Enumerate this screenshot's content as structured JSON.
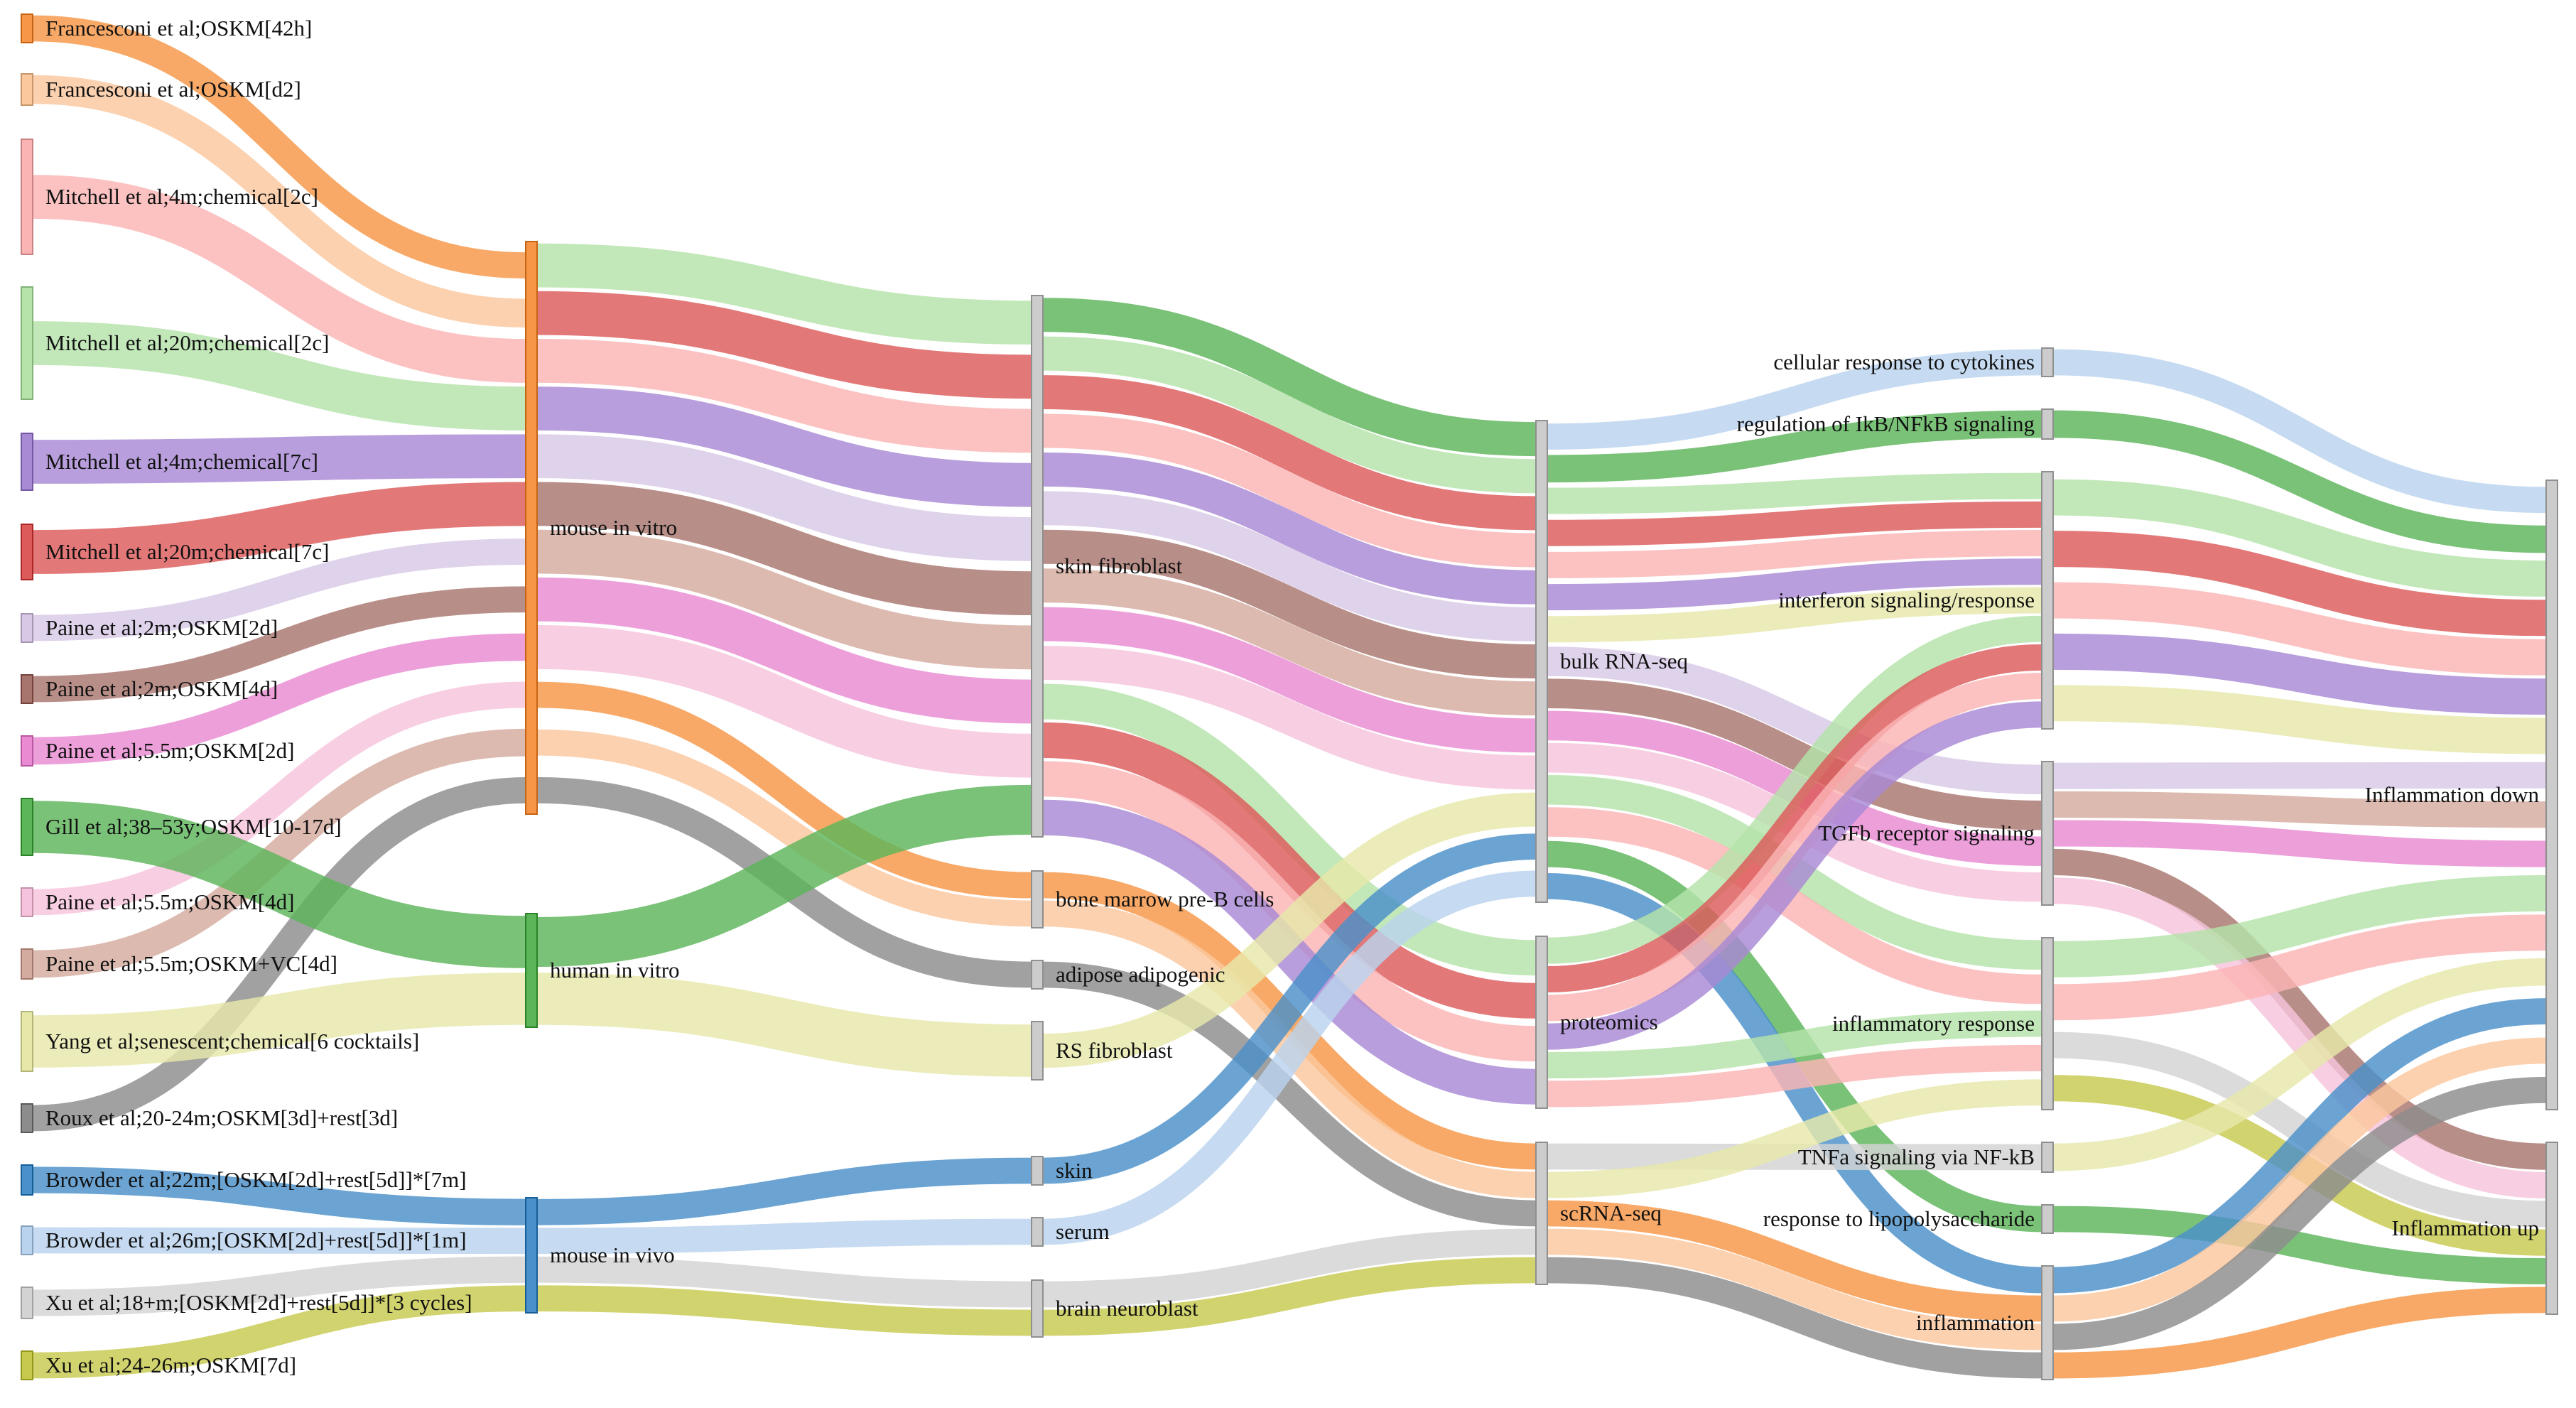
{
  "diagram": {
    "type": "sankey",
    "columns": [
      {
        "id": "studies",
        "nodes": [
          {
            "id": "s1",
            "label": "Francesconi et al;OSKM[42h]",
            "color": "#f79646"
          },
          {
            "id": "s2",
            "label": "Francesconi et al;OSKM[d2]",
            "color": "#fbc79d"
          },
          {
            "id": "s3",
            "label": "Mitchell et al;4m;chemical[2c]",
            "color": "#fbb4b4"
          },
          {
            "id": "s4",
            "label": "Mitchell et al;20m;chemical[2c]",
            "color": "#b5e3a9"
          },
          {
            "id": "s5",
            "label": "Mitchell et al;4m;chemical[7c]",
            "color": "#a889d4"
          },
          {
            "id": "s6",
            "label": "Mitchell et al;20m;chemical[7c]",
            "color": "#dd5a5a"
          },
          {
            "id": "s7",
            "label": "Paine et al;2m;OSKM[2d]",
            "color": "#d8c8e6"
          },
          {
            "id": "s8",
            "label": "Paine et al;2m;OSKM[4d]",
            "color": "#a8756e"
          },
          {
            "id": "s9",
            "label": "Paine et al;5.5m;OSKM[2d]",
            "color": "#e98ad2"
          },
          {
            "id": "s10",
            "label": "Gill et al;38–53y;OSKM[10-17d]",
            "color": "#5db55a"
          },
          {
            "id": "s11",
            "label": "Paine et al;5.5m;OSKM[4d]",
            "color": "#f6c3dd"
          },
          {
            "id": "s12",
            "label": "Paine et al;5.5m;OSKM+VC[4d]",
            "color": "#d4ab9f"
          },
          {
            "id": "s13",
            "label": "Yang et al;senescent;chemical[6 cocktails]",
            "color": "#e6e8aa"
          },
          {
            "id": "s14",
            "label": "Roux et al;20-24m;OSKM[3d]+rest[3d]",
            "color": "#8c8c8c"
          },
          {
            "id": "s15",
            "label": "Browder et al;22m;[OSKM[2d]+rest[5d]]*[7m]",
            "color": "#4a90c9"
          },
          {
            "id": "s16",
            "label": "Browder et al;26m;[OSKM[2d]+rest[5d]]*[1m]",
            "color": "#b9d3ee"
          },
          {
            "id": "s17",
            "label": "Xu et al;18+m;[OSKM[2d]+rest[5d]]*[3 cycles]",
            "color": "#d3d3d3"
          },
          {
            "id": "s18",
            "label": "Xu et al;24-26m;OSKM[7d]",
            "color": "#c7c94f"
          }
        ]
      },
      {
        "id": "models",
        "nodes": [
          {
            "id": "m1",
            "label": "mouse in vitro",
            "color": "#f79646"
          },
          {
            "id": "m2",
            "label": "human in vitro",
            "color": "#5db55a"
          },
          {
            "id": "m3",
            "label": "mouse in vivo",
            "color": "#4a90c9"
          }
        ]
      },
      {
        "id": "tissues",
        "nodes": [
          {
            "id": "t1",
            "label": "skin fibroblast",
            "color": "#cccccc"
          },
          {
            "id": "t2",
            "label": "bone marrow pre-B cells",
            "color": "#cccccc"
          },
          {
            "id": "t3",
            "label": "adipose adipogenic",
            "color": "#cccccc"
          },
          {
            "id": "t4",
            "label": "RS fibroblast",
            "color": "#cccccc"
          },
          {
            "id": "t5",
            "label": "skin",
            "color": "#cccccc"
          },
          {
            "id": "t6",
            "label": "serum",
            "color": "#cccccc"
          },
          {
            "id": "t7",
            "label": "brain neuroblast",
            "color": "#cccccc"
          }
        ]
      },
      {
        "id": "assays",
        "nodes": [
          {
            "id": "a1",
            "label": "bulk RNA-seq",
            "color": "#cccccc"
          },
          {
            "id": "a2",
            "label": "proteomics",
            "color": "#cccccc"
          },
          {
            "id": "a3",
            "label": "scRNA-seq",
            "color": "#cccccc"
          }
        ]
      },
      {
        "id": "pathways",
        "nodes": [
          {
            "id": "p1",
            "label": "cellular response to cytokines",
            "color": "#cccccc"
          },
          {
            "id": "p2",
            "label": "regulation of IkB/NFkB signaling",
            "color": "#cccccc"
          },
          {
            "id": "p3",
            "label": "interferon signaling/response",
            "color": "#cccccc"
          },
          {
            "id": "p4",
            "label": "TGFb receptor signaling",
            "color": "#cccccc"
          },
          {
            "id": "p5",
            "label": "inflammatory response",
            "color": "#cccccc"
          },
          {
            "id": "p6",
            "label": "TNFa signaling via NF-kB",
            "color": "#cccccc"
          },
          {
            "id": "p7",
            "label": "response to lipopolysaccharide",
            "color": "#cccccc"
          },
          {
            "id": "p8",
            "label": "inflammation",
            "color": "#cccccc"
          }
        ]
      },
      {
        "id": "outcomes",
        "nodes": [
          {
            "id": "o1",
            "label": "Inflammation down",
            "color": "#cccccc"
          },
          {
            "id": "o2",
            "label": "Inflammation up",
            "color": "#cccccc"
          }
        ]
      }
    ],
    "flows": [
      {
        "source": "s1",
        "target": "m1",
        "color": "#f79646"
      },
      {
        "source": "s2",
        "target": "m1",
        "color": "#fbc79d"
      },
      {
        "source": "s3",
        "target": "m1",
        "color": "#fbb4b4"
      },
      {
        "source": "s4",
        "target": "m1",
        "color": "#b5e3a9"
      },
      {
        "source": "s5",
        "target": "m1",
        "color": "#a889d4"
      },
      {
        "source": "s6",
        "target": "m1",
        "color": "#dd5a5a"
      },
      {
        "source": "s7",
        "target": "m1",
        "color": "#d8c8e6"
      },
      {
        "source": "s8",
        "target": "m1",
        "color": "#a8756e"
      },
      {
        "source": "s9",
        "target": "m1",
        "color": "#e98ad2"
      },
      {
        "source": "s11",
        "target": "m1",
        "color": "#f6c3dd"
      },
      {
        "source": "s12",
        "target": "m1",
        "color": "#d4ab9f"
      },
      {
        "source": "s14",
        "target": "m1",
        "color": "#8c8c8c"
      },
      {
        "source": "s10",
        "target": "m2",
        "color": "#5db55a"
      },
      {
        "source": "s13",
        "target": "m2",
        "color": "#e6e8aa"
      },
      {
        "source": "s15",
        "target": "m3",
        "color": "#4a90c9"
      },
      {
        "source": "s16",
        "target": "m3",
        "color": "#b9d3ee"
      },
      {
        "source": "s17",
        "target": "m3",
        "color": "#d3d3d3"
      },
      {
        "source": "s18",
        "target": "m3",
        "color": "#c7c94f"
      },
      {
        "source": "m1",
        "target": "t1",
        "color": "#b5e3a9"
      },
      {
        "source": "m1",
        "target": "t1",
        "color": "#dd5a5a"
      },
      {
        "source": "m1",
        "target": "t1",
        "color": "#fbb4b4"
      },
      {
        "source": "m1",
        "target": "t1",
        "color": "#a889d4"
      },
      {
        "source": "m1",
        "target": "t1",
        "color": "#d8c8e6"
      },
      {
        "source": "m1",
        "target": "t1",
        "color": "#a8756e"
      },
      {
        "source": "m1",
        "target": "t1",
        "color": "#d4ab9f"
      },
      {
        "source": "m1",
        "target": "t1",
        "color": "#e98ad2"
      },
      {
        "source": "m1",
        "target": "t1",
        "color": "#f6c3dd"
      },
      {
        "source": "m1",
        "target": "t2",
        "color": "#f79646"
      },
      {
        "source": "m1",
        "target": "t2",
        "color": "#fbc79d"
      },
      {
        "source": "m1",
        "target": "t3",
        "color": "#8c8c8c"
      },
      {
        "source": "m2",
        "target": "t1",
        "color": "#5db55a"
      },
      {
        "source": "m2",
        "target": "t4",
        "color": "#e6e8aa"
      },
      {
        "source": "m3",
        "target": "t5",
        "color": "#4a90c9"
      },
      {
        "source": "m3",
        "target": "t6",
        "color": "#b9d3ee"
      },
      {
        "source": "m3",
        "target": "t7",
        "color": "#d3d3d3"
      },
      {
        "source": "m3",
        "target": "t7",
        "color": "#c7c94f"
      },
      {
        "source": "t1",
        "target": "a1",
        "color": "#5db55a"
      },
      {
        "source": "t1",
        "target": "a1",
        "color": "#b5e3a9"
      },
      {
        "source": "t1",
        "target": "a1",
        "color": "#dd5a5a"
      },
      {
        "source": "t1",
        "target": "a1",
        "color": "#fbb4b4"
      },
      {
        "source": "t1",
        "target": "a1",
        "color": "#a889d4"
      },
      {
        "source": "t1",
        "target": "a1",
        "color": "#d8c8e6"
      },
      {
        "source": "t1",
        "target": "a1",
        "color": "#a8756e"
      },
      {
        "source": "t1",
        "target": "a1",
        "color": "#d4ab9f"
      },
      {
        "source": "t1",
        "target": "a1",
        "color": "#e98ad2"
      },
      {
        "source": "t1",
        "target": "a1",
        "color": "#f6c3dd"
      },
      {
        "source": "t1",
        "target": "a2",
        "color": "#b5e3a9"
      },
      {
        "source": "t1",
        "target": "a2",
        "color": "#dd5a5a"
      },
      {
        "source": "t1",
        "target": "a2",
        "color": "#fbb4b4"
      },
      {
        "source": "t1",
        "target": "a2",
        "color": "#a889d4"
      },
      {
        "source": "t2",
        "target": "a3",
        "color": "#f79646"
      },
      {
        "source": "t2",
        "target": "a3",
        "color": "#fbc79d"
      },
      {
        "source": "t3",
        "target": "a3",
        "color": "#8c8c8c"
      },
      {
        "source": "t4",
        "target": "a1",
        "color": "#e6e8aa"
      },
      {
        "source": "t5",
        "target": "a1",
        "color": "#4a90c9"
      },
      {
        "source": "t6",
        "target": "a1",
        "color": "#b9d3ee"
      },
      {
        "source": "t7",
        "target": "a3",
        "color": "#d3d3d3"
      },
      {
        "source": "t7",
        "target": "a3",
        "color": "#c7c94f"
      },
      {
        "source": "a1",
        "target": "p1",
        "color": "#b9d3ee"
      },
      {
        "source": "a1",
        "target": "p2",
        "color": "#5db55a"
      },
      {
        "source": "a1",
        "target": "p3",
        "color": "#b5e3a9"
      },
      {
        "source": "a1",
        "target": "p3",
        "color": "#dd5a5a"
      },
      {
        "source": "a1",
        "target": "p3",
        "color": "#fbb4b4"
      },
      {
        "source": "a1",
        "target": "p3",
        "color": "#a889d4"
      },
      {
        "source": "a1",
        "target": "p3",
        "color": "#e6e8aa"
      },
      {
        "source": "a1",
        "target": "p4",
        "color": "#d8c8e6"
      },
      {
        "source": "a1",
        "target": "p4",
        "color": "#a8756e"
      },
      {
        "source": "a1",
        "target": "p4",
        "color": "#e98ad2"
      },
      {
        "source": "a1",
        "target": "p4",
        "color": "#f6c3dd"
      },
      {
        "source": "a1",
        "target": "p5",
        "color": "#b5e3a9"
      },
      {
        "source": "a1",
        "target": "p5",
        "color": "#fbb4b4"
      },
      {
        "source": "a1",
        "target": "p7",
        "color": "#5db55a"
      },
      {
        "source": "a1",
        "target": "p8",
        "color": "#4a90c9"
      },
      {
        "source": "a2",
        "target": "p3",
        "color": "#b5e3a9"
      },
      {
        "source": "a2",
        "target": "p3",
        "color": "#dd5a5a"
      },
      {
        "source": "a2",
        "target": "p3",
        "color": "#fbb4b4"
      },
      {
        "source": "a2",
        "target": "p3",
        "color": "#a889d4"
      },
      {
        "source": "a2",
        "target": "p5",
        "color": "#b5e3a9"
      },
      {
        "source": "a2",
        "target": "p5",
        "color": "#fbb4b4"
      },
      {
        "source": "a3",
        "target": "p6",
        "color": "#d3d3d3"
      },
      {
        "source": "a3",
        "target": "p5",
        "color": "#e6e8aa"
      },
      {
        "source": "a3",
        "target": "p8",
        "color": "#f79646"
      },
      {
        "source": "a3",
        "target": "p8",
        "color": "#fbc79d"
      },
      {
        "source": "a3",
        "target": "p8",
        "color": "#8c8c8c"
      },
      {
        "source": "p1",
        "target": "o1",
        "color": "#b9d3ee"
      },
      {
        "source": "p2",
        "target": "o1",
        "color": "#5db55a"
      },
      {
        "source": "p3",
        "target": "o1",
        "color": "#b5e3a9"
      },
      {
        "source": "p3",
        "target": "o1",
        "color": "#dd5a5a"
      },
      {
        "source": "p3",
        "target": "o1",
        "color": "#fbb4b4"
      },
      {
        "source": "p3",
        "target": "o1",
        "color": "#a889d4"
      },
      {
        "source": "p3",
        "target": "o1",
        "color": "#e6e8aa"
      },
      {
        "source": "p4",
        "target": "o1",
        "color": "#d8c8e6"
      },
      {
        "source": "p4",
        "target": "o1",
        "color": "#d4ab9f"
      },
      {
        "source": "p4",
        "target": "o1",
        "color": "#e98ad2"
      },
      {
        "source": "p4",
        "target": "o2",
        "color": "#a8756e"
      },
      {
        "source": "p4",
        "target": "o2",
        "color": "#f6c3dd"
      },
      {
        "source": "p5",
        "target": "o1",
        "color": "#b5e3a9"
      },
      {
        "source": "p5",
        "target": "o1",
        "color": "#fbb4b4"
      },
      {
        "source": "p5",
        "target": "o2",
        "color": "#d3d3d3"
      },
      {
        "source": "p5",
        "target": "o2",
        "color": "#c7c94f"
      },
      {
        "source": "p6",
        "target": "o1",
        "color": "#e6e8aa"
      },
      {
        "source": "p7",
        "target": "o2",
        "color": "#5db55a"
      },
      {
        "source": "p8",
        "target": "o1",
        "color": "#4a90c9"
      },
      {
        "source": "p8",
        "target": "o1",
        "color": "#fbc79d"
      },
      {
        "source": "p8",
        "target": "o1",
        "color": "#8c8c8c"
      },
      {
        "source": "p8",
        "target": "o2",
        "color": "#f79646"
      }
    ]
  }
}
